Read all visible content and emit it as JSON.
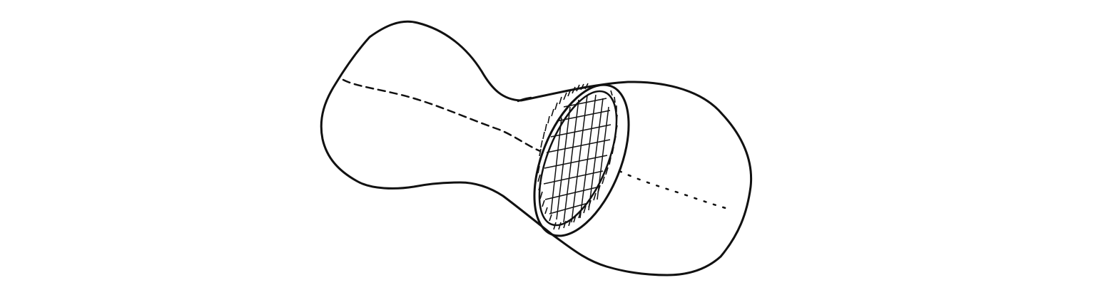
{
  "diagram": {
    "type": "hand-drawn sketch",
    "colors": {
      "background": "#ffffff",
      "ink": "#111111"
    },
    "icons": [
      "peanut-surface-outline",
      "hatched-cross-section-disk",
      "dashed-axis-line"
    ]
  }
}
